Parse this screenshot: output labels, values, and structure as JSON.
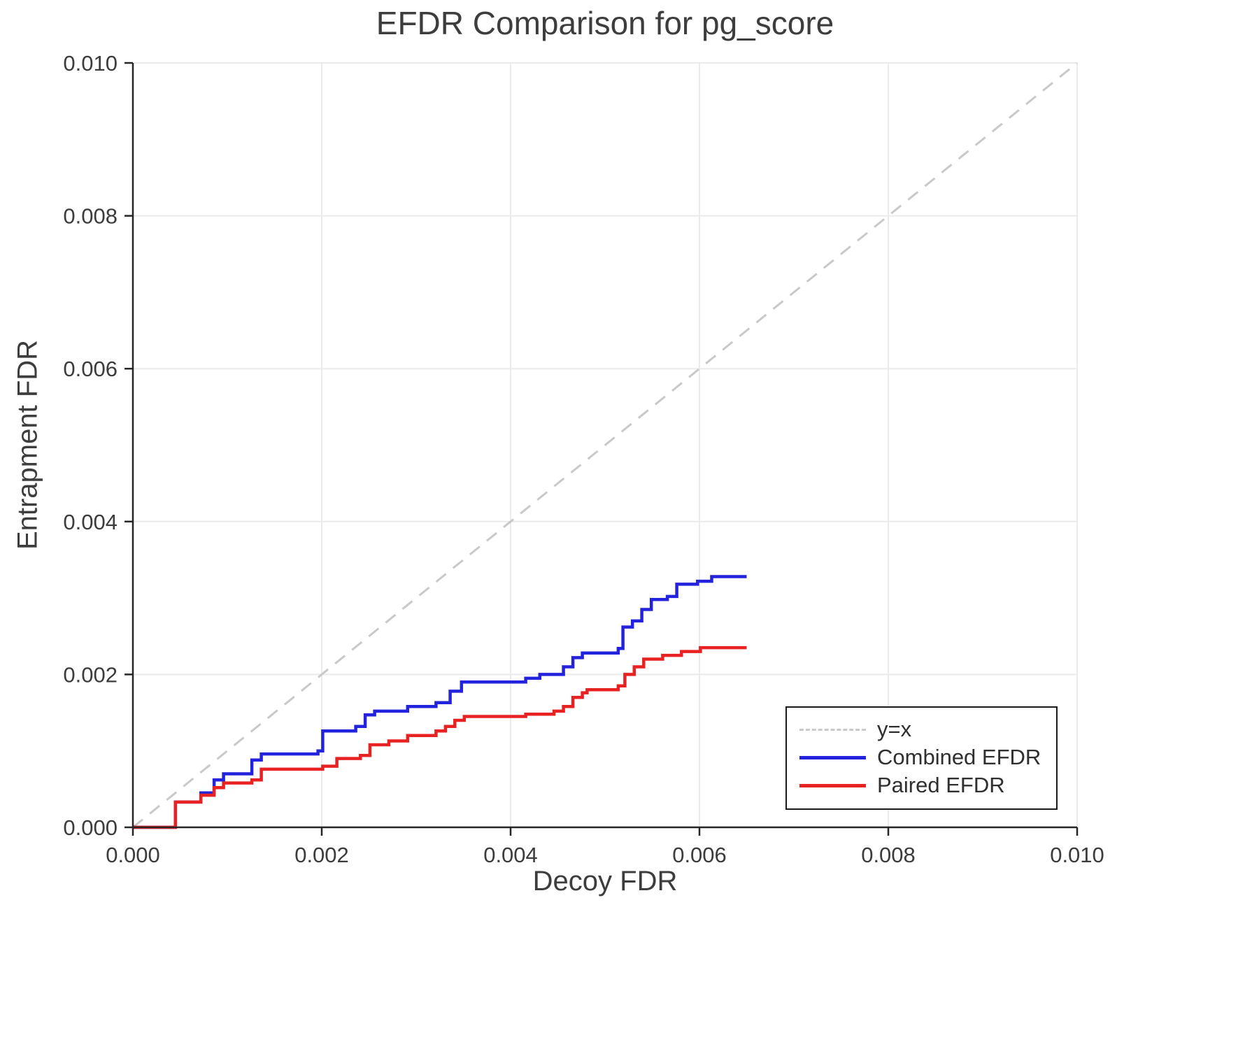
{
  "chart_data": {
    "type": "line",
    "title": "EFDR Comparison for pg_score",
    "xlabel": "Decoy FDR",
    "ylabel": "Entrapment FDR",
    "xlim": [
      0.0,
      0.01
    ],
    "ylim": [
      0.0,
      0.01
    ],
    "xticks": [
      "0.000",
      "0.002",
      "0.004",
      "0.006",
      "0.008",
      "0.010"
    ],
    "yticks": [
      "0.000",
      "0.002",
      "0.004",
      "0.006",
      "0.008",
      "0.010"
    ],
    "grid": true,
    "grid_color": "#ebebeb",
    "spine_color": "#262626",
    "legend_position": "bottom-right",
    "reference_line": {
      "label": "y=x",
      "from": [
        0.0,
        0.0
      ],
      "to": [
        0.01,
        0.01
      ],
      "color": "#c9c9c9",
      "style": "dashed"
    },
    "series": [
      {
        "name": "Combined EFDR",
        "color": "#2323dd",
        "style": "step",
        "points": [
          [
            0.0,
            0.0
          ],
          [
            0.00045,
            0.00033
          ],
          [
            0.00072,
            0.00045
          ],
          [
            0.00086,
            0.00062
          ],
          [
            0.00096,
            0.0007
          ],
          [
            0.00126,
            0.00088
          ],
          [
            0.00136,
            0.00096
          ],
          [
            0.00196,
            0.001
          ],
          [
            0.00201,
            0.00126
          ],
          [
            0.00236,
            0.00132
          ],
          [
            0.00246,
            0.00147
          ],
          [
            0.00256,
            0.00152
          ],
          [
            0.00291,
            0.00158
          ],
          [
            0.00321,
            0.00163
          ],
          [
            0.00336,
            0.00178
          ],
          [
            0.00348,
            0.0019
          ],
          [
            0.00416,
            0.00195
          ],
          [
            0.00431,
            0.002
          ],
          [
            0.00456,
            0.0021
          ],
          [
            0.00466,
            0.00222
          ],
          [
            0.00476,
            0.00228
          ],
          [
            0.00514,
            0.00234
          ],
          [
            0.00519,
            0.00262
          ],
          [
            0.00529,
            0.0027
          ],
          [
            0.00539,
            0.00285
          ],
          [
            0.00549,
            0.00298
          ],
          [
            0.00566,
            0.00302
          ],
          [
            0.00576,
            0.00318
          ],
          [
            0.00598,
            0.00322
          ],
          [
            0.00613,
            0.00328
          ],
          [
            0.0065,
            0.00328
          ]
        ]
      },
      {
        "name": "Paired EFDR",
        "color": "#e82222",
        "style": "step",
        "points": [
          [
            0.0,
            0.0
          ],
          [
            0.00045,
            0.00033
          ],
          [
            0.00072,
            0.00042
          ],
          [
            0.00086,
            0.00052
          ],
          [
            0.00096,
            0.00058
          ],
          [
            0.00126,
            0.00062
          ],
          [
            0.00136,
            0.00076
          ],
          [
            0.00201,
            0.0008
          ],
          [
            0.00216,
            0.0009
          ],
          [
            0.00241,
            0.00094
          ],
          [
            0.00251,
            0.00108
          ],
          [
            0.00271,
            0.00113
          ],
          [
            0.00291,
            0.0012
          ],
          [
            0.00321,
            0.00126
          ],
          [
            0.00331,
            0.00132
          ],
          [
            0.00341,
            0.0014
          ],
          [
            0.00351,
            0.00145
          ],
          [
            0.00416,
            0.00148
          ],
          [
            0.00446,
            0.00152
          ],
          [
            0.00456,
            0.00158
          ],
          [
            0.00466,
            0.0017
          ],
          [
            0.00476,
            0.00176
          ],
          [
            0.00481,
            0.0018
          ],
          [
            0.00514,
            0.00185
          ],
          [
            0.00521,
            0.002
          ],
          [
            0.00531,
            0.0021
          ],
          [
            0.00541,
            0.0022
          ],
          [
            0.00561,
            0.00225
          ],
          [
            0.00581,
            0.0023
          ],
          [
            0.00601,
            0.00235
          ],
          [
            0.0065,
            0.00235
          ]
        ]
      }
    ]
  }
}
